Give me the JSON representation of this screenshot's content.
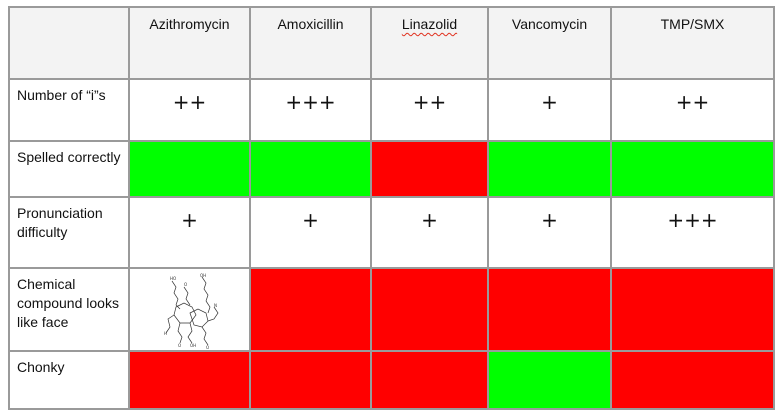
{
  "columns": [
    "Azithromycin",
    "Amoxicillin",
    "Linazolid",
    "Vancomycin",
    "TMP/SMX"
  ],
  "rows": [
    {
      "label": "Number of “i”s",
      "cells": [
        "++",
        "+++",
        "++",
        "+",
        "++"
      ]
    },
    {
      "label": "Spelled correctly",
      "cells": [
        "yes",
        "yes",
        "no",
        "yes",
        "yes"
      ],
      "colors": [
        "#00ff00",
        "#00ff00",
        "#ff0000",
        "#00ff00",
        "#00ff00"
      ]
    },
    {
      "label": "Pronunciation difficulty",
      "cells": [
        "+",
        "+",
        "+",
        "+",
        "+++"
      ]
    },
    {
      "label": "Chemical compound looks like face",
      "cells": [
        "yes",
        "no",
        "no",
        "no",
        "no"
      ],
      "colors": [
        "image",
        "#ff0000",
        "#ff0000",
        "#ff0000",
        "#ff0000"
      ]
    },
    {
      "label": "Chonky",
      "cells": [
        "no",
        "no",
        "no",
        "yes",
        "no"
      ],
      "colors": [
        "#ff0000",
        "#ff0000",
        "#ff0000",
        "#00ff00",
        "#ff0000"
      ]
    }
  ],
  "images": {
    "azithromycin_structure": "azithromycin-structure-drawing"
  }
}
